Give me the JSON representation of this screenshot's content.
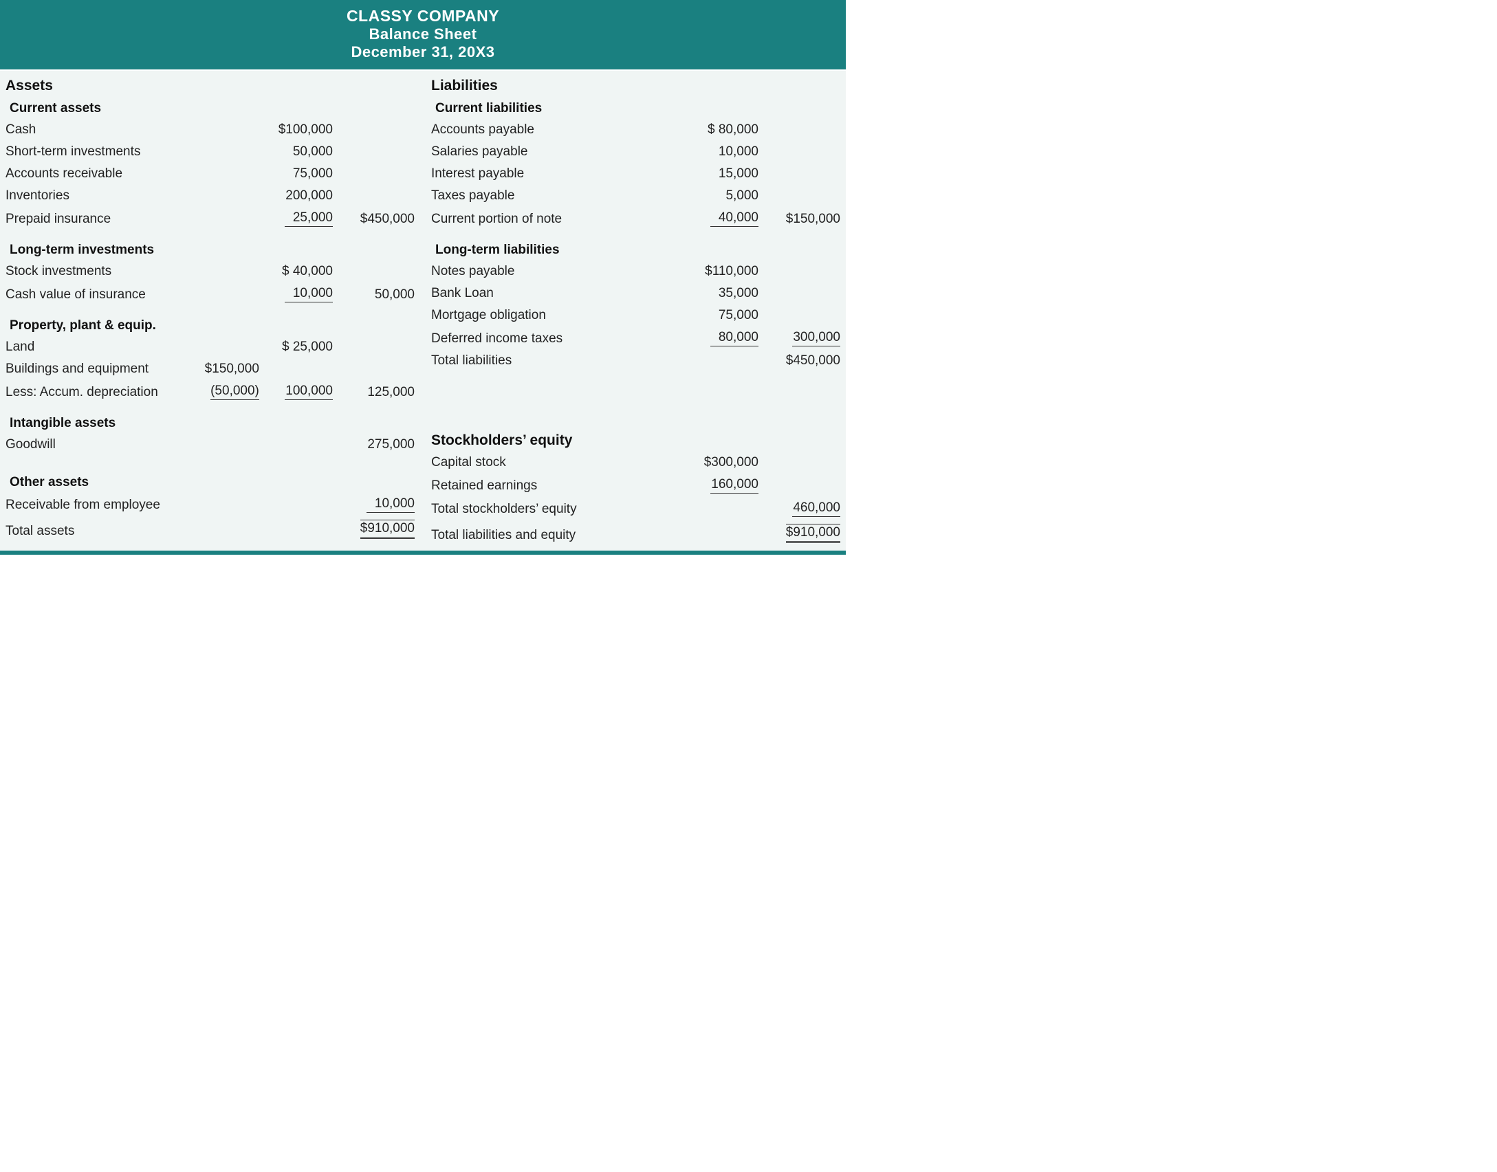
{
  "colors": {
    "header_bg": "#1a8080",
    "header_text": "#ffffff",
    "body_bg": "#f0f5f4",
    "text": "#222222",
    "rule": "#333333"
  },
  "typography": {
    "header_fontsize_pt": 17,
    "body_fontsize_pt": 14,
    "font_family": "Myriad Pro / sans-serif"
  },
  "header": {
    "company": "CLASSY COMPANY",
    "title": "Balance Sheet",
    "date": "December 31, 20X3"
  },
  "assets": {
    "title": "Assets",
    "current": {
      "title": "Current assets",
      "items": [
        {
          "label": "Cash",
          "c2": "$100,000"
        },
        {
          "label": "Short-term investments",
          "c2": "50,000"
        },
        {
          "label": "Accounts receivable",
          "c2": "75,000"
        },
        {
          "label": "Inventories",
          "c2": "200,000"
        },
        {
          "label": "Prepaid insurance",
          "c2": "25,000",
          "c2_rule": "single",
          "c3": "$450,000"
        }
      ]
    },
    "longterm": {
      "title": "Long-term investments",
      "items": [
        {
          "label": "Stock investments",
          "c2": "$  40,000"
        },
        {
          "label": "Cash value of insurance",
          "c2": "10,000",
          "c2_rule": "single",
          "c3": "50,000"
        }
      ]
    },
    "ppe": {
      "title": "Property, plant & equip.",
      "items": [
        {
          "label": "Land",
          "c2": "$  25,000"
        },
        {
          "label": "Buildings and equipment",
          "c1": "$150,000"
        },
        {
          "label": "Less:  Accum. depreciation",
          "c1": "(50,000)",
          "c1_rule": "single",
          "c2": "100,000",
          "c2_rule": "single",
          "c3": "125,000"
        }
      ]
    },
    "intangible": {
      "title": "Intangible assets",
      "items": [
        {
          "label": "Goodwill",
          "c3": "275,000"
        }
      ]
    },
    "other": {
      "title": "Other assets",
      "items": [
        {
          "label": "Receivable from employee",
          "c3": "10,000",
          "c3_rule": "single"
        }
      ]
    },
    "total": {
      "label": "Total assets",
      "c3": "$910,000",
      "c3_rule": "double"
    }
  },
  "liab": {
    "title": "Liabilities",
    "current": {
      "title": "Current liabilities",
      "items": [
        {
          "label": "Accounts payable",
          "c2": "$  80,000"
        },
        {
          "label": "Salaries payable",
          "c2": "10,000"
        },
        {
          "label": "Interest payable",
          "c2": "15,000"
        },
        {
          "label": "Taxes payable",
          "c2": "5,000"
        },
        {
          "label": "Current portion of note",
          "c2": "40,000",
          "c2_rule": "single",
          "c3": "$150,000"
        }
      ]
    },
    "longterm": {
      "title": "Long-term liabilities",
      "items": [
        {
          "label": "Notes payable",
          "c2": "$110,000"
        },
        {
          "label": "Bank Loan",
          "c2": "35,000"
        },
        {
          "label": "Mortgage obligation",
          "c2": "75,000"
        },
        {
          "label": "Deferred income taxes",
          "c2": "80,000",
          "c2_rule": "single",
          "c3": "300,000",
          "c3_rule": "single"
        }
      ]
    },
    "total": {
      "label": "Total liabilities",
      "c3": "$450,000"
    }
  },
  "equity": {
    "title": "Stockholders’ equity",
    "items": [
      {
        "label": "Capital stock",
        "c2": "$300,000"
      },
      {
        "label": "Retained earnings",
        "c2": "160,000",
        "c2_rule": "single"
      }
    ],
    "total": {
      "label": "Total stockholders’ equity",
      "c3": "460,000",
      "c3_rule": "single"
    },
    "grand": {
      "label": "Total liabilities and equity",
      "c3": "$910,000",
      "c3_rule": "double"
    }
  }
}
